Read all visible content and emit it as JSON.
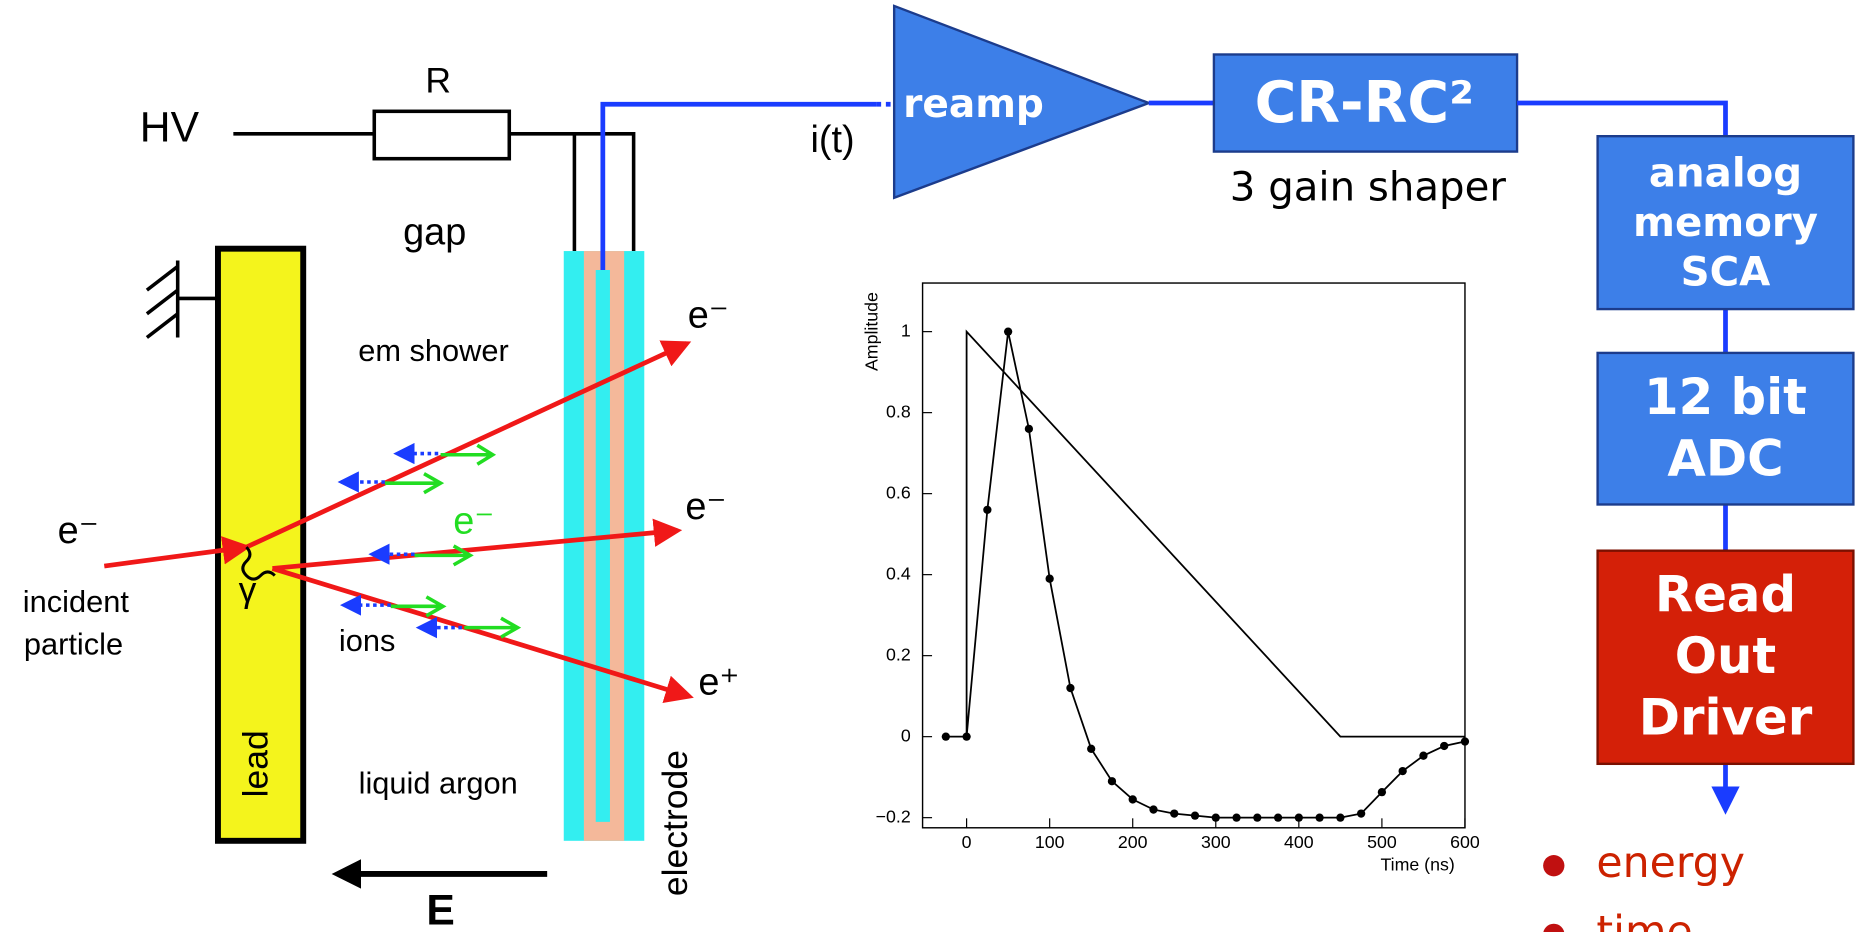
{
  "diagram": {
    "hv": "HV",
    "r": "R",
    "gap": "gap",
    "em_shower": "em shower",
    "e_top": "e⁻",
    "e_mid": "e⁻",
    "e_plus": "e⁺",
    "e_incident": "e⁻",
    "e_green": "e⁻",
    "incident": [
      "incident",
      "particle"
    ],
    "ions": "ions",
    "gamma": "γ",
    "lead": "lead",
    "liquid_argon": "liquid argon",
    "electrode": "electrode",
    "field": "E",
    "current": "i(t)",
    "preamp": "reamp",
    "shaper": "CR-RC²",
    "shaper_note": "3 gain shaper",
    "memory": [
      "analog",
      "memory",
      "SCA"
    ],
    "adc": [
      "12 bit",
      "ADC"
    ],
    "rod": [
      "Read",
      "Out",
      "Driver"
    ],
    "outputs": [
      "energy",
      "time"
    ]
  },
  "chart_data": {
    "type": "line",
    "x_label": "Time (ns)",
    "y_label": "Amplitude",
    "series": [
      {
        "color": "#000000",
        "x": [
          0,
          0,
          450,
          600
        ],
        "values": [
          0,
          1,
          0,
          0
        ]
      },
      {
        "color": "#000000",
        "markers": true,
        "x": [
          -25,
          0,
          25,
          50,
          75,
          100,
          125,
          150,
          175,
          200,
          225,
          250,
          275,
          300,
          325,
          350,
          375,
          400,
          425,
          450,
          475,
          500,
          525,
          550,
          575,
          600
        ],
        "values": [
          0,
          0,
          0.56,
          1.0,
          0.76,
          0.39,
          0.12,
          -0.03,
          -0.11,
          -0.155,
          -0.18,
          -0.19,
          -0.195,
          -0.2,
          -0.2,
          -0.2,
          -0.2,
          -0.2,
          -0.2,
          -0.2,
          -0.19,
          -0.137,
          -0.085,
          -0.047,
          -0.023,
          -0.012
        ]
      }
    ],
    "xlim": [
      -53,
      600
    ],
    "ylim": [
      -0.225,
      1.12
    ],
    "xticks": [
      0,
      100,
      200,
      300,
      400,
      500,
      600
    ],
    "yticks": [
      {
        "value": -0.2,
        "label": "−0.2"
      },
      0,
      0.2,
      0.4,
      0.6,
      0.8,
      1
    ]
  }
}
